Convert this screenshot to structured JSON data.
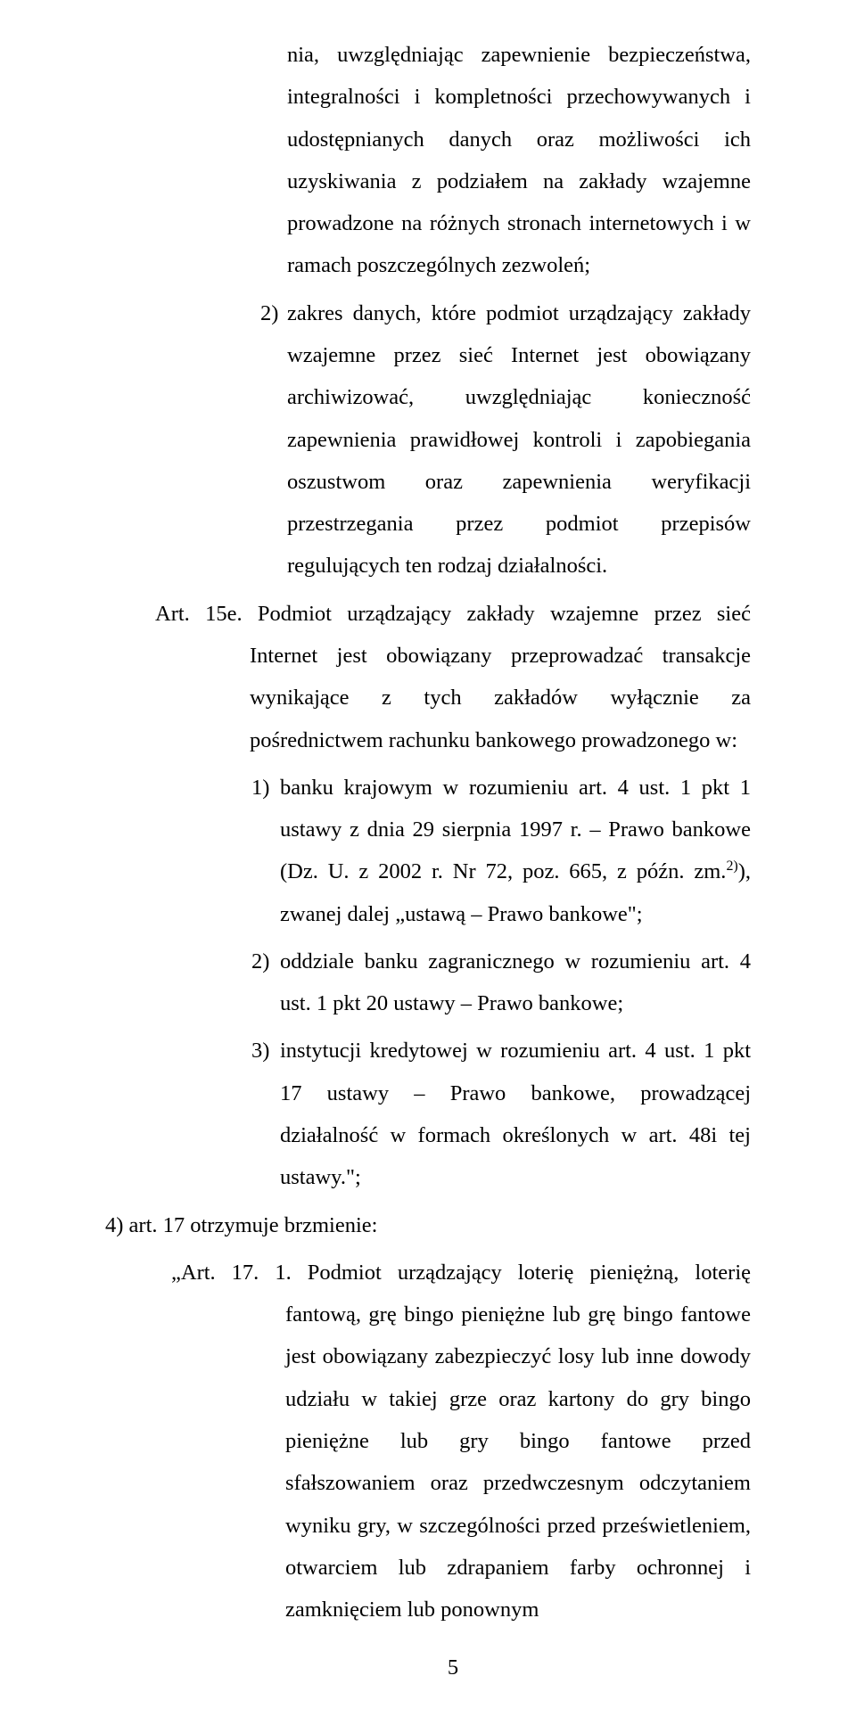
{
  "p_cont1": "nia, uwzględniając zapewnienie bezpieczeństwa, integralności i kompletności przechowywanych i udostępnianych danych oraz możliwości ich uzyskiwania z podziałem na zakłady wzajemne prowadzone na różnych stronach internetowych i w ramach poszczególnych zezwoleń;",
  "sub2_marker": "2)",
  "sub2_text": "zakres danych, które podmiot urządzający zakłady wzajemne przez sieć Internet jest obowiązany archiwizować, uwzględniając konieczność zapewnienia prawidłowej kontroli i zapobiegania oszustwom oraz zapewnienia weryfikacji przestrzegania przez podmiot przepisów regulujących ten rodzaj działalności.",
  "art15e_label": "Art. 15e.",
  "art15e_text": "Podmiot urządzający zakłady wzajemne przez sieć Internet jest obowiązany przeprowadzać transakcje wynikające z tych zakładów wyłącznie za pośrednictwem rachunku bankowego prowadzonego w:",
  "e1_marker": "1)",
  "e1_text_a": "banku krajowym w rozumieniu art. 4 ust. 1 pkt 1 ustawy z dnia 29 sierpnia 1997 r. – Prawo bankowe (Dz. U. z 2002 r. Nr 72, poz. 665, z późn. zm.",
  "e1_sup": "2)",
  "e1_text_b": "), zwanej dalej „ustawą – Prawo bankowe\";",
  "e2_marker": "2)",
  "e2_text": "oddziale banku zagranicznego w rozumieniu art. 4 ust. 1 pkt 20 ustawy – Prawo bankowe;",
  "e3_marker": "3)",
  "e3_text": "instytucji kredytowej w rozumieniu art. 4 ust. 1 pkt 17 ustawy – Prawo bankowe, prowadzącej działalność w formach określonych w art. 48i tej ustawy.\";",
  "toplevel4": "4)  art. 17 otrzymuje  brzmienie:",
  "art17_label": "„Art. 17. 1.",
  "art17_text": "Podmiot urządzający loterię pieniężną, loterię fantową, grę bingo pieniężne lub grę bingo fantowe jest obowiązany zabezpieczyć losy lub inne dowody udziału w takiej grze oraz kartony do gry bingo pieniężne lub gry bingo fantowe przed sfałszowaniem oraz przedwczesnym odczytaniem wyniku gry, w szczególności przed prześwietleniem, otwarciem lub zdrapaniem farby ochronnej i zamknięciem lub ponownym",
  "pagenum": "5"
}
